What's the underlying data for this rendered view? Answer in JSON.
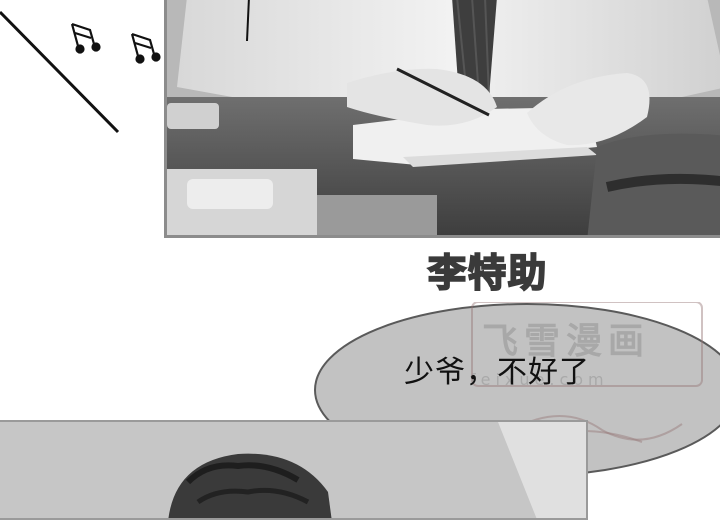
{
  "panel_top": {
    "image": "office-man-writing-at-desk"
  },
  "panel_bottom": {
    "image": "man-curly-hair"
  },
  "caption": {
    "name": "李特助"
  },
  "bubble": {
    "text": "少爷，不好了"
  },
  "watermark": {
    "title": "飞雪漫画",
    "url": "feixue.com"
  },
  "decor": {
    "icon": "music-note-icon"
  }
}
